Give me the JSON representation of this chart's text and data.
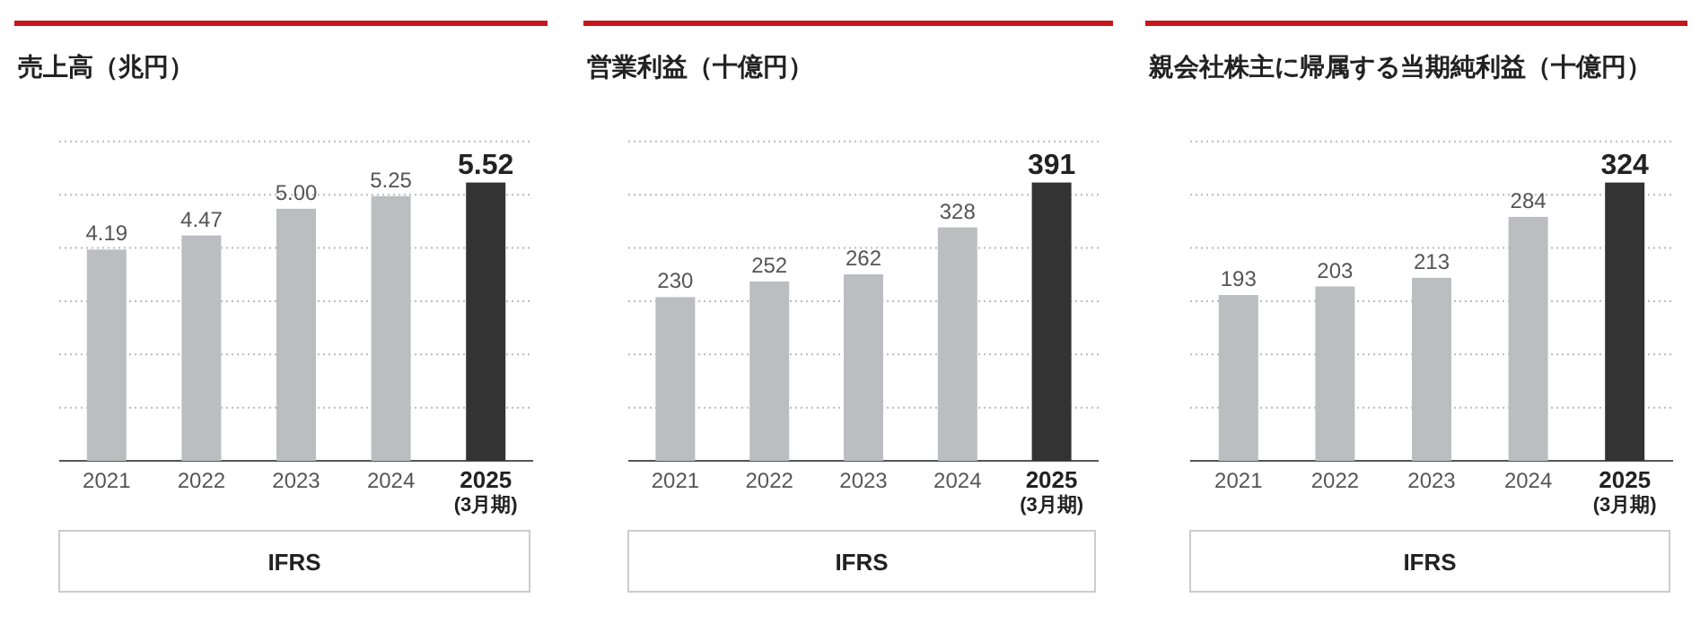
{
  "chart_data": [
    {
      "type": "bar",
      "title": "売上高（兆円）",
      "categories": [
        "2021",
        "2022",
        "2023",
        "2024",
        "2025\n(3月期)"
      ],
      "values": [
        4.19,
        4.47,
        5.0,
        5.25,
        5.52
      ],
      "value_labels": [
        "4.19",
        "4.47",
        "5.00",
        "5.25",
        "5.52"
      ],
      "colors": [
        "#bcbdc0",
        "#bcbdc0",
        "#bcbdc0",
        "#bcbdc0",
        "#333333"
      ],
      "grid": "y",
      "annotations": [
        "IFRS"
      ]
    },
    {
      "type": "bar",
      "title": "営業利益（十億円）",
      "categories": [
        "2021",
        "2022",
        "2023",
        "2024",
        "2025\n(3月期)"
      ],
      "values": [
        230,
        252,
        262,
        328,
        391
      ],
      "data_labels": true,
      "colors": [
        "#bcbdc0",
        "#bcbdc0",
        "#bcbdc0",
        "#bcbdc0",
        "#333333"
      ],
      "grid": "y",
      "annotations": [
        "IFRS"
      ]
    },
    {
      "type": "bar",
      "title": "親会社株主に帰属する当期純利益（十億円）",
      "categories": [
        "2021",
        "2022",
        "2023",
        "2024",
        "2025\n(3月期)"
      ],
      "values": [
        193,
        203,
        213,
        284,
        324
      ],
      "data_labels": true,
      "colors": [
        "#bcbdc0",
        "#bcbdc0",
        "#bcbdc0",
        "#bcbdc0",
        "#333333"
      ],
      "grid": "y",
      "annotations": [
        "IFRS"
      ]
    }
  ]
}
